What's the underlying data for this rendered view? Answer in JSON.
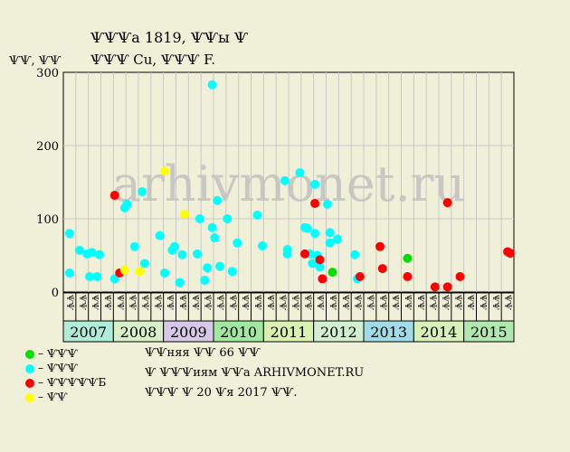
{
  "title_line1": "ѰѰѰа 1819, ѰѰы Ѱ",
  "title_line2": "ѰѰѰ Cu, ѰѰѰ F.",
  "ylabel": "ѰѰ, ѰѰ",
  "watermark": "arhivmonet.ru",
  "legend": [
    {
      "label": "– ѰѰѰ",
      "color": "#00e000"
    },
    {
      "label": "– ѰѰѰ",
      "color": "#00ffff"
    },
    {
      "label": "– ѰѰѰѰѰБ",
      "color": "#ff0000"
    },
    {
      "label": "– ѰѰ",
      "color": "#ffff00"
    }
  ],
  "notes": [
    "ѰѰняя ѰѰ 66 ѰѰ",
    "Ѱ ѰѰѰиям ѰѰа ARHIVMONET.RU",
    "ѰѰѰ Ѱ 20 Ѱя 2017 ѰѰ."
  ],
  "chart_data": {
    "type": "scatter",
    "ylim": [
      0,
      300
    ],
    "yticks": [
      0,
      100,
      200,
      300
    ],
    "grid": true,
    "legend_position": "bottom-left",
    "month_labels": [
      "ѰѰ",
      "ѰѰ",
      "ѰѰ",
      "ѰѰ",
      "ѰѰ",
      "ѰѰ",
      "ѰѰ",
      "ѰѰ",
      "ѰѰ",
      "ѰѰ",
      "ѰѰ",
      "ѰѰ",
      "ѰѰ",
      "ѰѰ",
      "ѰѰ",
      "ѰѰ",
      "ѰѰ",
      "ѰѰ",
      "ѰѰ",
      "ѰѰ",
      "ѰѰ",
      "ѰѰ",
      "ѰѰ",
      "ѰѰ",
      "ѰѰ",
      "ѰѰ",
      "ѰѰ",
      "ѰѰ",
      "ѰѰ",
      "ѰѰ",
      "ѰѰ",
      "ѰѰ",
      "ѰѰ",
      "ѰѰ",
      "ѰѰ",
      "ѰѰ"
    ],
    "years": [
      {
        "label": "2007",
        "color": "#b0ecd8"
      },
      {
        "label": "2008",
        "color": "#d8f0c8"
      },
      {
        "label": "2009",
        "color": "#d8c8e8"
      },
      {
        "label": "2010",
        "color": "#a0e8a0"
      },
      {
        "label": "2011",
        "color": "#d8f0b0"
      },
      {
        "label": "2012",
        "color": "#d0f0d0"
      },
      {
        "label": "2013",
        "color": "#a0dce8"
      },
      {
        "label": "2014",
        "color": "#d8f0b8"
      },
      {
        "label": "2015",
        "color": "#b0e8b0"
      }
    ],
    "series": [
      {
        "name": "– ѰѰѰ",
        "color": "#00e000",
        "points": [
          [
            2012.25,
            27
          ],
          [
            2013.75,
            46
          ]
        ]
      },
      {
        "name": "– ѰѰѰ",
        "color": "#00ffff",
        "points": [
          [
            2007.0,
            80
          ],
          [
            2007.0,
            26
          ],
          [
            2007.2,
            57
          ],
          [
            2007.35,
            52
          ],
          [
            2007.4,
            21
          ],
          [
            2007.45,
            54
          ],
          [
            2007.55,
            21
          ],
          [
            2007.6,
            51
          ],
          [
            2007.9,
            18
          ],
          [
            2008.1,
            115
          ],
          [
            2008.15,
            120
          ],
          [
            2008.3,
            62
          ],
          [
            2008.45,
            137
          ],
          [
            2008.5,
            39
          ],
          [
            2008.8,
            77
          ],
          [
            2008.9,
            26
          ],
          [
            2009.05,
            57
          ],
          [
            2009.1,
            62
          ],
          [
            2009.2,
            13
          ],
          [
            2009.25,
            51
          ],
          [
            2009.55,
            52
          ],
          [
            2009.6,
            100
          ],
          [
            2009.7,
            16
          ],
          [
            2009.75,
            33
          ],
          [
            2009.85,
            88
          ],
          [
            2009.9,
            74
          ],
          [
            2009.95,
            125
          ],
          [
            2010.0,
            35
          ],
          [
            2010.15,
            100
          ],
          [
            2010.25,
            28
          ],
          [
            2010.35,
            67
          ],
          [
            2010.75,
            105
          ],
          [
            2010.85,
            63
          ],
          [
            2011.3,
            152
          ],
          [
            2011.35,
            58
          ],
          [
            2011.35,
            52
          ],
          [
            2011.6,
            163
          ],
          [
            2011.7,
            88
          ],
          [
            2011.75,
            87
          ],
          [
            2011.8,
            52
          ],
          [
            2011.85,
            39
          ],
          [
            2011.9,
            147
          ],
          [
            2011.9,
            80
          ],
          [
            2011.95,
            50
          ],
          [
            2012.0,
            34
          ],
          [
            2012.15,
            120
          ],
          [
            2012.2,
            81
          ],
          [
            2012.2,
            67
          ],
          [
            2012.35,
            72
          ],
          [
            2012.7,
            51
          ],
          [
            2012.75,
            18
          ]
        ],
        "outlier": [
          2009.85,
          283
        ]
      },
      {
        "name": "– ѰѰѰѰѰБ",
        "color": "#ff0000",
        "points": [
          [
            2007.9,
            132
          ],
          [
            2008.0,
            26
          ],
          [
            2011.7,
            52
          ],
          [
            2011.9,
            121
          ],
          [
            2012.0,
            44
          ],
          [
            2012.05,
            18
          ],
          [
            2012.8,
            21
          ],
          [
            2013.2,
            62
          ],
          [
            2013.25,
            32
          ],
          [
            2013.75,
            21
          ],
          [
            2014.3,
            7
          ],
          [
            2014.55,
            7
          ],
          [
            2014.55,
            122
          ],
          [
            2014.8,
            21
          ],
          [
            2015.75,
            55
          ],
          [
            2015.8,
            53
          ]
        ]
      },
      {
        "name": "– ѰѰ",
        "color": "#ffff00",
        "points": [
          [
            2008.1,
            30
          ],
          [
            2008.4,
            28
          ],
          [
            2008.9,
            165
          ],
          [
            2009.3,
            106
          ]
        ]
      }
    ]
  }
}
